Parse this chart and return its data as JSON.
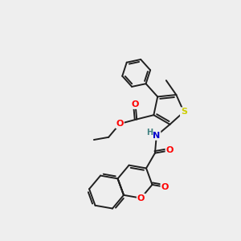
{
  "background_color": "#eeeeee",
  "bond_color": "#202020",
  "atom_colors": {
    "O": "#ff0000",
    "N": "#0000cc",
    "S": "#cccc00",
    "C": "#202020",
    "H": "#408080"
  },
  "figsize": [
    3.0,
    3.0
  ],
  "dpi": 100,
  "bond_lw": 1.4,
  "font_size": 7.5
}
